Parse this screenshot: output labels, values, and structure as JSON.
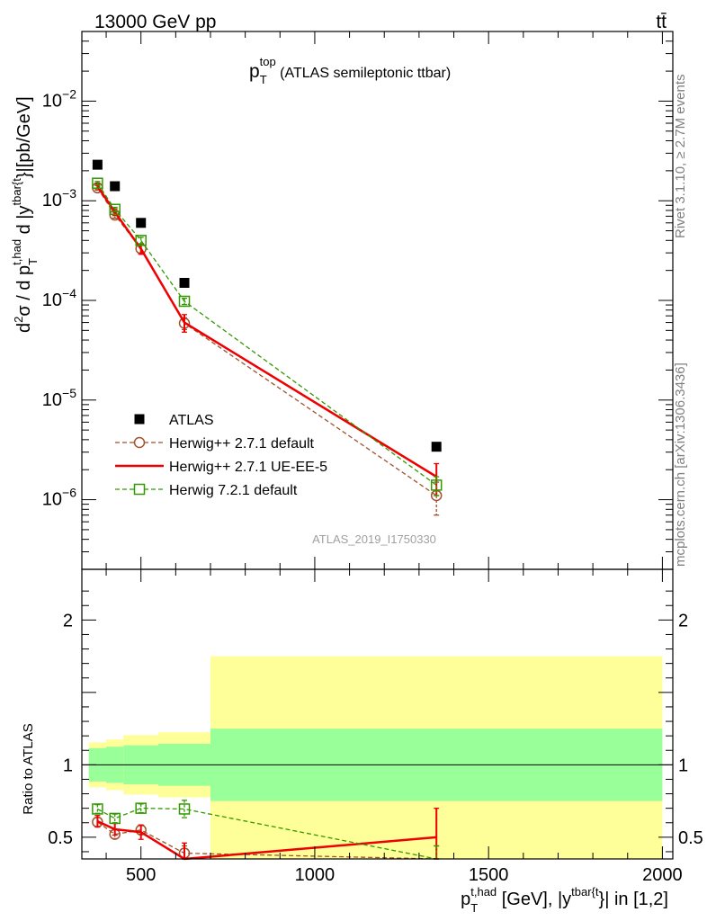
{
  "header": {
    "left": "13000 GeV pp",
    "right": "tt̄"
  },
  "side_text": {
    "rivet": "Rivet 3.1.10, ≥ 2.7M events",
    "mcplots": "mcplots.cern.ch [arXiv:1306.3436]"
  },
  "watermark": "ATLAS_2019_I1750330",
  "chart_data": [
    {
      "type": "line",
      "panel": "main",
      "title": {
        "base": "p",
        "sub": "T",
        "sup": "top",
        "rest": " (ATLAS semileptonic ttbar)"
      },
      "ylabel": {
        "d2": "d",
        "two": "2",
        "sigma": "σ / d p",
        "sub": "T",
        "sup": "t,had",
        "mid": " d |y",
        "sup2": "tbar{t",
        "end": "}|[pb/GeV]"
      },
      "yscale": "log",
      "xlim": [
        330,
        2030
      ],
      "ylim": [
        2e-07,
        0.05
      ],
      "yticks": [
        {
          "value": 1e-06,
          "base": "10",
          "exp": "−6"
        },
        {
          "value": 1e-05,
          "base": "10",
          "exp": "−5"
        },
        {
          "value": 0.0001,
          "base": "10",
          "exp": "−4"
        },
        {
          "value": 0.001,
          "base": "10",
          "exp": "−3"
        },
        {
          "value": 0.01,
          "base": "10",
          "exp": "−2"
        }
      ],
      "legend_position": "lower-left",
      "series": [
        {
          "name": "ATLAS",
          "style": "data",
          "color": "#000000",
          "x": [
            375,
            425,
            500,
            625,
            1350
          ],
          "y": [
            0.0023,
            0.0014,
            0.0006,
            0.00015,
            3.4e-06
          ]
        },
        {
          "name": "Herwig++ 2.7.1 default",
          "style": "dashed-circle",
          "color": "#a0522d",
          "x": [
            375,
            425,
            500,
            625,
            1350
          ],
          "y": [
            0.00135,
            0.00072,
            0.00033,
            5.9e-05,
            1.1e-06
          ],
          "err": [
            7e-05,
            5e-05,
            3e-05,
            8e-06,
            4e-07
          ]
        },
        {
          "name": "Herwig++ 2.7.1 UE-EE-5",
          "style": "solid",
          "color": "#ee0000",
          "x": [
            375,
            425,
            500,
            625,
            1350
          ],
          "y": [
            0.0014,
            0.00077,
            0.00033,
            6e-05,
            1.7e-06
          ],
          "err": [
            8e-05,
            6e-05,
            4e-05,
            1.2e-05,
            6e-07
          ]
        },
        {
          "name": "Herwig 7.2.1 default",
          "style": "dashed-square",
          "color": "#339900",
          "x": [
            375,
            425,
            500,
            625,
            1350
          ],
          "y": [
            0.0015,
            0.00082,
            0.0004,
            9.8e-05,
            1.4e-06
          ],
          "err": [
            6e-05,
            4e-05,
            3e-05,
            7e-06,
            3e-07
          ]
        }
      ]
    },
    {
      "type": "line",
      "panel": "ratio",
      "ylabel": "Ratio to ATLAS",
      "xlabel": {
        "p": "p",
        "sub": "T",
        "sup": "t,had",
        "mid": " [GeV], |y",
        "sup2": "tbar{t",
        "end": "}| in [1,2]"
      },
      "xlim": [
        330,
        2030
      ],
      "ylim": [
        0.35,
        2.35
      ],
      "xticks": [
        500,
        1000,
        1500,
        2000
      ],
      "yticks": [
        0.5,
        1,
        2
      ],
      "bins": [
        350,
        400,
        450,
        550,
        700,
        2000
      ],
      "band_stat": [
        [
          0.885,
          1.115
        ],
        [
          0.875,
          1.125
        ],
        [
          0.865,
          1.135
        ],
        [
          0.855,
          1.145
        ],
        [
          0.75,
          1.25
        ]
      ],
      "band_total": [
        [
          0.845,
          1.155
        ],
        [
          0.825,
          1.175
        ],
        [
          0.795,
          1.205
        ],
        [
          0.775,
          1.225
        ],
        [
          0.35,
          1.75
        ]
      ],
      "series": [
        {
          "name": "Herwig++ 2.7.1 default",
          "style": "dashed-circle",
          "color": "#a0522d",
          "x": [
            375,
            425,
            500,
            625,
            1350
          ],
          "y": [
            0.605,
            0.52,
            0.55,
            0.39,
            0.32
          ],
          "err": [
            0.03,
            0.03,
            0.03,
            0.05,
            0.12
          ]
        },
        {
          "name": "Herwig++ 2.7.1 UE-EE-5",
          "style": "solid",
          "color": "#ee0000",
          "x": [
            375,
            425,
            500,
            625,
            1350
          ],
          "y": [
            0.61,
            0.555,
            0.535,
            0.34,
            0.5
          ],
          "err": [
            0.04,
            0.04,
            0.05,
            0.12,
            0.2
          ]
        },
        {
          "name": "Herwig 7.2.1 default",
          "style": "dashed-square",
          "color": "#339900",
          "x": [
            375,
            425,
            500,
            625,
            1350
          ],
          "y": [
            0.695,
            0.63,
            0.7,
            0.695,
            0.34
          ],
          "err": [
            0.03,
            0.03,
            0.03,
            0.06,
            0.1
          ]
        }
      ]
    }
  ]
}
